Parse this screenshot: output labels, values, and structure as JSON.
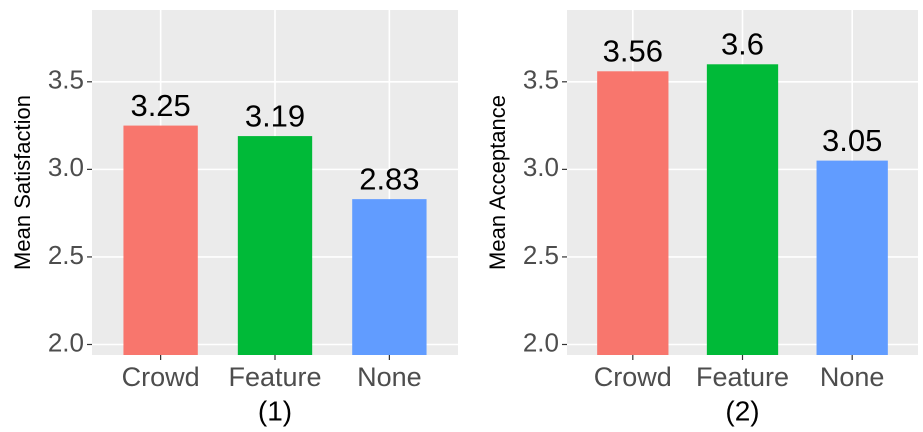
{
  "chart_data": [
    {
      "type": "bar",
      "ylabel": "Mean Satisfaction",
      "caption": "(1)",
      "categories": [
        "Crowd",
        "Feature",
        "None"
      ],
      "values": [
        3.25,
        3.19,
        2.83
      ],
      "colors": [
        "#f8766d",
        "#00ba38",
        "#619cff"
      ],
      "ylim": [
        1.94,
        3.91
      ],
      "yticks": [
        {
          "value": 2,
          "label": "2.0"
        },
        2.5,
        {
          "value": 3,
          "label": "3.0"
        },
        3.5
      ],
      "grid": true
    },
    {
      "type": "bar",
      "ylabel": "Mean Acceptance",
      "caption": "(2)",
      "categories": [
        "Crowd",
        "Feature",
        "None"
      ],
      "values": [
        3.56,
        3.6,
        3.05
      ],
      "colors": [
        "#f8766d",
        "#00ba38",
        "#619cff"
      ],
      "ylim": [
        1.94,
        3.91
      ],
      "yticks": [
        {
          "value": 2,
          "label": "2.0"
        },
        2.5,
        {
          "value": 3,
          "label": "3.0"
        },
        3.5
      ],
      "grid": true
    }
  ]
}
